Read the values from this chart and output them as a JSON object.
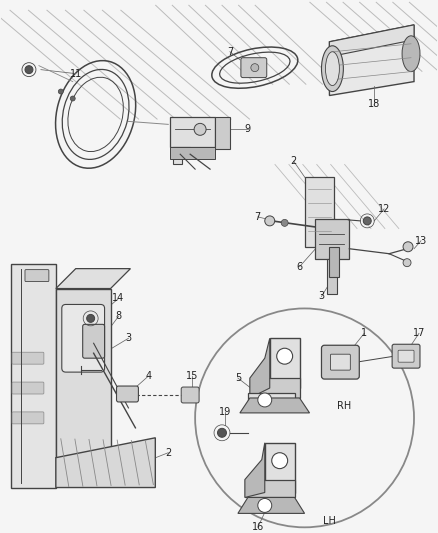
{
  "bg_color": "#f5f5f5",
  "line_color": "#444444",
  "light_line": "#888888",
  "hatch_color": "#aaaaaa",
  "fill_light": "#e0e0e0",
  "fill_mid": "#cccccc",
  "fill_dark": "#b8b8b8",
  "label_fs": 7,
  "figsize": [
    4.38,
    5.33
  ],
  "dpi": 100
}
